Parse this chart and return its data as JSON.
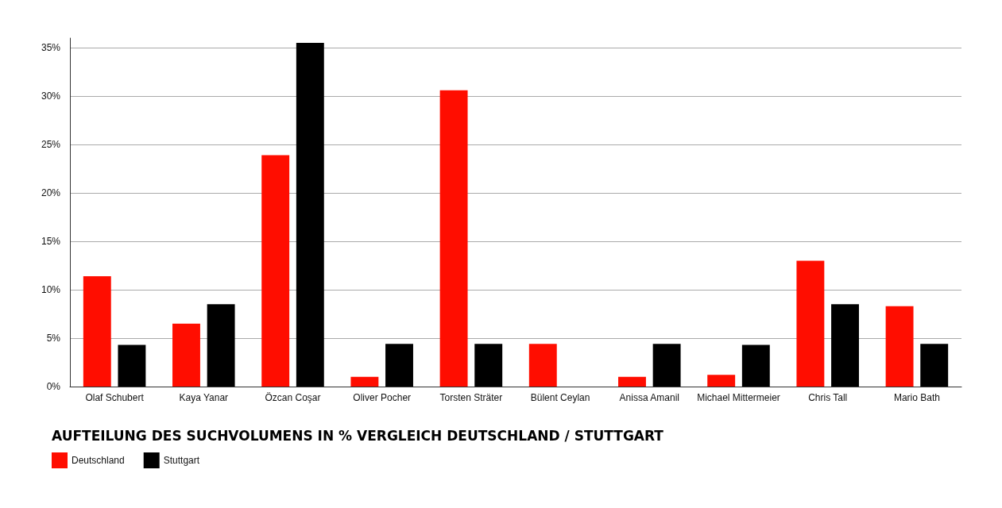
{
  "chart_data": {
    "type": "bar",
    "title": "AUFTEILUNG DES SUCHVOLUMENS IN % VERGLEICH DEUTSCHLAND / STUTTGART",
    "categories": [
      "Olaf Schubert",
      "Kaya Yanar",
      "Özcan Coşar",
      "Oliver Pocher",
      "Torsten Sträter",
      "Bülent Ceylan",
      "Anissa Amanil",
      "Michael Mittermeier",
      "Chris Tall",
      "Mario Bath"
    ],
    "series": [
      {
        "name": "Deutschland",
        "color": "#ff0d00",
        "values": [
          11.4,
          6.5,
          23.9,
          1.0,
          30.6,
          4.4,
          1.0,
          1.2,
          13.0,
          8.3
        ]
      },
      {
        "name": "Stuttgart",
        "color": "#000000",
        "values": [
          4.3,
          8.5,
          35.5,
          4.4,
          4.4,
          0,
          4.4,
          4.3,
          8.5,
          4.4
        ]
      }
    ],
    "ylim": [
      0,
      36
    ],
    "yticks": [
      {
        "value": 0,
        "label": "0%"
      },
      {
        "value": 5,
        "label": "5%"
      },
      {
        "value": 10,
        "label": "10%"
      },
      {
        "value": 15,
        "label": "15%"
      },
      {
        "value": 20,
        "label": "20%"
      },
      {
        "value": 25,
        "label": "25%"
      },
      {
        "value": 30,
        "label": "30%"
      },
      {
        "value": 35,
        "label": "35%"
      }
    ],
    "grid": "y",
    "legend": "bottom left"
  }
}
